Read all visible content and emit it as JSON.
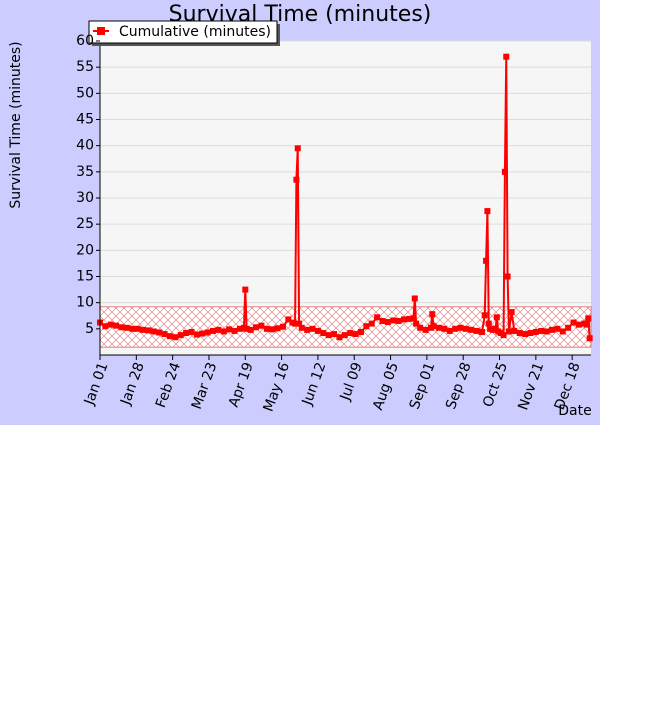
{
  "chart_data": {
    "type": "line",
    "title": "Survival Time (minutes)",
    "y_label": "Survival Time (minutes)",
    "x_label": "Date",
    "legend": "upper left",
    "grid": true,
    "xlim": [
      0,
      365
    ],
    "xticks": [
      {
        "value": 0,
        "label": "Jan 01"
      },
      {
        "value": 27,
        "label": "Jan 28"
      },
      {
        "value": 54,
        "label": "Feb 24"
      },
      {
        "value": 81,
        "label": "Mar 23"
      },
      {
        "value": 108,
        "label": "Apr 19"
      },
      {
        "value": 135,
        "label": "May 16"
      },
      {
        "value": 162,
        "label": "Jun 12"
      },
      {
        "value": 189,
        "label": "Jul 09"
      },
      {
        "value": 216,
        "label": "Aug 05"
      },
      {
        "value": 243,
        "label": "Sep 01"
      },
      {
        "value": 270,
        "label": "Sep 28"
      },
      {
        "value": 297,
        "label": "Oct 25"
      },
      {
        "value": 324,
        "label": "Nov 21"
      },
      {
        "value": 351,
        "label": "Dec 18"
      }
    ],
    "ylim": [
      0,
      60
    ],
    "yticks": [
      5,
      10,
      15,
      20,
      25,
      30,
      35,
      40,
      45,
      50,
      55,
      60
    ],
    "band": {
      "low": 1.5,
      "high": 9.2,
      "color": "#e06060"
    },
    "series": [
      {
        "name": "Cumulative (minutes)",
        "color": "#ff0000",
        "x": [
          0,
          4,
          8,
          12,
          16,
          20,
          24,
          28,
          32,
          36,
          40,
          44,
          48,
          52,
          56,
          60,
          64,
          68,
          72,
          76,
          80,
          84,
          88,
          92,
          96,
          100,
          104,
          107,
          108,
          109,
          112,
          116,
          120,
          124,
          128,
          132,
          136,
          140,
          143,
          145,
          146,
          147,
          148,
          150,
          154,
          158,
          162,
          166,
          170,
          174,
          178,
          182,
          186,
          190,
          194,
          198,
          202,
          206,
          210,
          214,
          218,
          222,
          226,
          230,
          233,
          234,
          235,
          238,
          242,
          246,
          247,
          248,
          252,
          256,
          260,
          264,
          268,
          272,
          276,
          280,
          284,
          286,
          287,
          288,
          289,
          290,
          292,
          294,
          295,
          296,
          298,
          300,
          301,
          302,
          303,
          304,
          306,
          308,
          312,
          316,
          320,
          324,
          328,
          332,
          336,
          340,
          344,
          348,
          352,
          356,
          360,
          362,
          363,
          364
        ],
        "values": [
          6.2,
          5.5,
          5.8,
          5.6,
          5.3,
          5.2,
          5.0,
          5.0,
          4.8,
          4.7,
          4.5,
          4.3,
          4.0,
          3.6,
          3.4,
          3.8,
          4.2,
          4.4,
          3.9,
          4.1,
          4.3,
          4.6,
          4.8,
          4.5,
          4.9,
          4.6,
          5.0,
          5.2,
          12.5,
          5.0,
          4.8,
          5.3,
          5.6,
          5.0,
          4.9,
          5.1,
          5.4,
          6.8,
          6.2,
          6.0,
          33.5,
          39.5,
          6.0,
          5.2,
          4.8,
          5.0,
          4.6,
          4.2,
          3.8,
          4.0,
          3.4,
          3.8,
          4.2,
          4.0,
          4.4,
          5.5,
          6.0,
          7.2,
          6.5,
          6.3,
          6.6,
          6.5,
          6.8,
          6.9,
          7.0,
          10.8,
          6.0,
          5.2,
          4.8,
          5.2,
          7.8,
          5.5,
          5.2,
          5.0,
          4.6,
          5.0,
          5.2,
          5.0,
          4.8,
          4.6,
          4.4,
          7.6,
          18.0,
          27.5,
          6.0,
          5.0,
          4.8,
          5.0,
          7.2,
          4.5,
          4.2,
          3.8,
          35.0,
          57.0,
          15.0,
          4.5,
          8.2,
          4.6,
          4.2,
          4.0,
          4.2,
          4.4,
          4.6,
          4.5,
          4.8,
          5.0,
          4.5,
          5.2,
          6.2,
          5.8,
          6.0,
          5.8,
          7.0,
          3.2
        ]
      }
    ]
  }
}
